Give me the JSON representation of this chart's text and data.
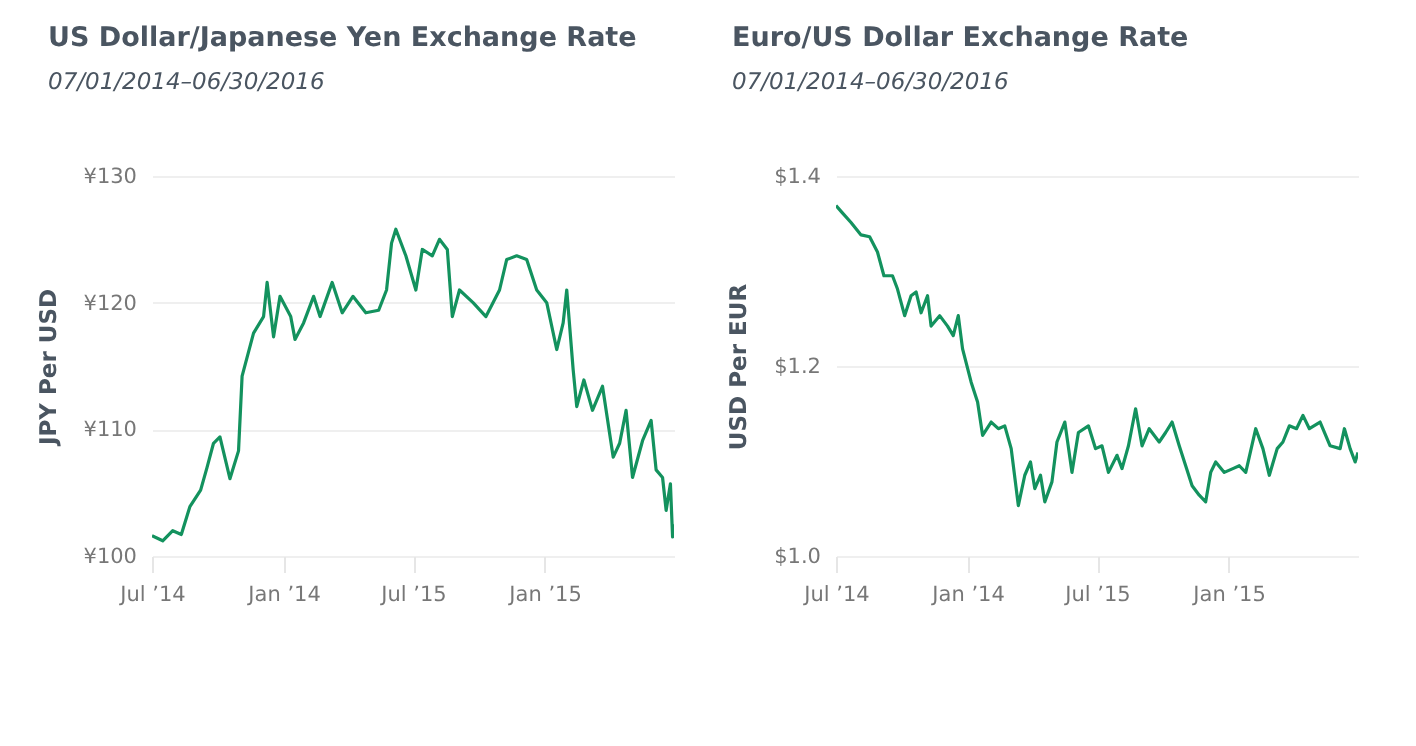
{
  "chart_data": [
    {
      "type": "line",
      "title": "US Dollar/Japanese Yen Exchange Rate",
      "subtitle": "07/01/2014–06/30/2016",
      "ylabel": "JPY Per USD",
      "grid": "y",
      "x": [
        "2014-07-01",
        "2014-07-16",
        "2014-07-30",
        "2014-08-11",
        "2014-08-23",
        "2014-09-07",
        "2014-09-16",
        "2014-09-25",
        "2014-10-04",
        "2014-10-18",
        "2014-10-30",
        "2014-11-04",
        "2014-11-20",
        "2014-12-04",
        "2014-12-09",
        "2014-12-18",
        "2014-12-27",
        "2015-01-11",
        "2015-01-17",
        "2015-01-29",
        "2015-02-12",
        "2015-02-21",
        "2015-03-10",
        "2015-03-24",
        "2015-04-08",
        "2015-04-26",
        "2015-05-14",
        "2015-05-25",
        "2015-06-01",
        "2015-06-07",
        "2015-06-21",
        "2015-07-05",
        "2015-07-14",
        "2015-07-28",
        "2015-08-07",
        "2015-08-18",
        "2015-08-25",
        "2015-09-04",
        "2015-09-23",
        "2015-10-11",
        "2015-10-30",
        "2015-11-09",
        "2015-11-23",
        "2015-12-07",
        "2015-12-21",
        "2016-01-04",
        "2016-01-18",
        "2016-01-27",
        "2016-02-01",
        "2016-02-10",
        "2016-02-15",
        "2016-02-25",
        "2016-03-08",
        "2016-03-22",
        "2016-04-06",
        "2016-04-15",
        "2016-04-24",
        "2016-05-03",
        "2016-05-17",
        "2016-05-29",
        "2016-06-05",
        "2016-06-14",
        "2016-06-19",
        "2016-06-25",
        "2016-06-28",
        "2016-06-30"
      ],
      "series": [
        {
          "color": "#13925e",
          "values": [
            101.6,
            101.2,
            102.0,
            101.7,
            103.9,
            105.2,
            107.0,
            108.9,
            109.4,
            106.1,
            108.3,
            114.2,
            117.6,
            118.9,
            121.6,
            117.3,
            120.5,
            118.9,
            117.1,
            118.4,
            120.5,
            118.9,
            121.6,
            119.2,
            120.5,
            119.2,
            119.4,
            121.0,
            124.7,
            125.8,
            123.7,
            121.0,
            124.2,
            123.7,
            125.0,
            124.2,
            118.9,
            121.0,
            120.0,
            118.9,
            121.0,
            123.4,
            123.7,
            123.4,
            121.0,
            120.0,
            116.3,
            118.4,
            121.0,
            114.7,
            111.8,
            113.9,
            111.5,
            113.4,
            107.8,
            108.9,
            111.5,
            106.2,
            109.1,
            110.7,
            106.8,
            106.2,
            103.6,
            105.7,
            101.5,
            102.5
          ]
        }
      ],
      "xlim": [
        "2014-07-01",
        "2016-06-30"
      ],
      "xticks": [
        {
          "value": "2014-07-01",
          "label": "Jul ’14"
        },
        {
          "value": "2015-01-01",
          "label": "Jan ’14"
        },
        {
          "value": "2015-07-01",
          "label": "Jul ’15"
        },
        {
          "value": "2016-01-01",
          "label": "Jan ’15"
        }
      ],
      "ylim": [
        100,
        130
      ],
      "yticks": [
        {
          "value": 100,
          "label": "¥100"
        },
        {
          "value": 110,
          "label": "¥110"
        },
        {
          "value": 120,
          "label": "¥120"
        },
        {
          "value": 130,
          "label": "¥130"
        }
      ]
    },
    {
      "type": "line",
      "title": "Euro/US Dollar Exchange Rate",
      "subtitle": "07/01/2014–06/30/2016",
      "ylabel": "USD Per EUR",
      "grid": "y",
      "x": [
        "2014-07-01",
        "2014-07-09",
        "2014-07-22",
        "2014-08-05",
        "2014-08-17",
        "2014-08-28",
        "2014-09-06",
        "2014-09-18",
        "2014-09-25",
        "2014-10-05",
        "2014-10-14",
        "2014-10-21",
        "2014-10-28",
        "2014-11-06",
        "2014-11-11",
        "2014-11-23",
        "2014-12-04",
        "2014-12-12",
        "2014-12-19",
        "2014-12-25",
        "2015-01-06",
        "2015-01-15",
        "2015-01-22",
        "2015-02-03",
        "2015-02-13",
        "2015-02-22",
        "2015-03-03",
        "2015-03-13",
        "2015-03-22",
        "2015-03-30",
        "2015-04-05",
        "2015-04-13",
        "2015-04-19",
        "2015-04-29",
        "2015-05-06",
        "2015-05-17",
        "2015-05-27",
        "2015-06-05",
        "2015-06-19",
        "2015-06-29",
        "2015-07-08",
        "2015-07-17",
        "2015-07-29",
        "2015-08-05",
        "2015-08-14",
        "2015-08-24",
        "2015-09-02",
        "2015-09-12",
        "2015-09-26",
        "2015-10-05",
        "2015-10-14",
        "2015-10-24",
        "2015-11-02",
        "2015-11-11",
        "2015-11-21",
        "2015-11-30",
        "2015-12-07",
        "2015-12-14",
        "2015-12-26",
        "2016-01-07",
        "2016-01-16",
        "2016-01-25",
        "2016-02-08",
        "2016-02-18",
        "2016-02-27",
        "2016-03-09",
        "2016-03-17",
        "2016-03-26",
        "2016-04-05",
        "2016-04-14",
        "2016-04-23",
        "2016-05-08",
        "2016-05-22",
        "2016-06-05",
        "2016-06-11",
        "2016-06-19",
        "2016-06-26",
        "2016-06-30"
      ],
      "series": [
        {
          "color": "#13925e",
          "values": [
            1.369,
            1.362,
            1.351,
            1.338,
            1.336,
            1.32,
            1.295,
            1.295,
            1.281,
            1.253,
            1.274,
            1.278,
            1.256,
            1.274,
            1.242,
            1.253,
            1.242,
            1.232,
            1.253,
            1.218,
            1.183,
            1.162,
            1.127,
            1.141,
            1.134,
            1.137,
            1.113,
            1.053,
            1.085,
            1.099,
            1.071,
            1.085,
            1.057,
            1.078,
            1.12,
            1.141,
            1.088,
            1.13,
            1.137,
            1.113,
            1.116,
            1.088,
            1.106,
            1.092,
            1.116,
            1.155,
            1.116,
            1.134,
            1.12,
            1.13,
            1.141,
            1.116,
            1.095,
            1.074,
            1.064,
            1.057,
            1.088,
            1.099,
            1.088,
            1.092,
            1.095,
            1.088,
            1.134,
            1.113,
            1.085,
            1.113,
            1.12,
            1.137,
            1.134,
            1.148,
            1.134,
            1.141,
            1.116,
            1.113,
            1.134,
            1.113,
            1.099,
            1.109
          ]
        }
      ],
      "xlim": [
        "2014-07-01",
        "2016-06-30"
      ],
      "xticks": [
        {
          "value": "2014-07-01",
          "label": "Jul ’14"
        },
        {
          "value": "2015-01-01",
          "label": "Jan ’14"
        },
        {
          "value": "2015-07-01",
          "label": "Jul ’15"
        },
        {
          "value": "2016-01-01",
          "label": "Jan ’15"
        }
      ],
      "ylim": [
        1.0,
        1.4
      ],
      "yticks": [
        {
          "value": 1.0,
          "label": "$1.0"
        },
        {
          "value": 1.2,
          "label": "$1.2"
        },
        {
          "value": 1.4,
          "label": "$1.4"
        }
      ]
    }
  ]
}
